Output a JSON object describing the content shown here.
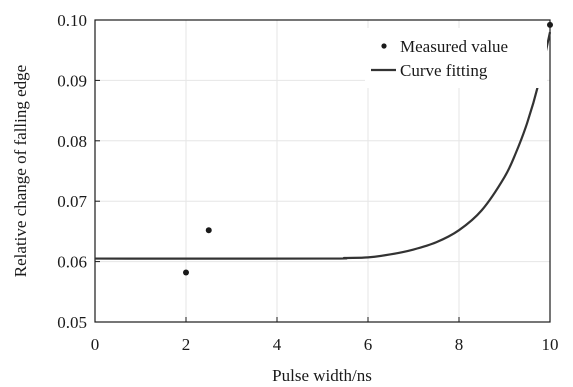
{
  "chart_data": {
    "type": "scatter",
    "xlabel": "Pulse width/ns",
    "ylabel": "Relative change of falling edge",
    "xlim": [
      0,
      10
    ],
    "ylim": [
      0.05,
      0.1
    ],
    "x_ticks": [
      "0",
      "2",
      "4",
      "6",
      "8",
      "10"
    ],
    "y_ticks": [
      "0.05",
      "0.06",
      "0.07",
      "0.08",
      "0.09",
      "0.10"
    ],
    "grid": true,
    "legend_position": "top-right",
    "series": [
      {
        "name": "Measured value",
        "kind": "scatter",
        "points": [
          {
            "x": 2.0,
            "y": 0.0582
          },
          {
            "x": 2.5,
            "y": 0.0652
          },
          {
            "x": 10.0,
            "y": 0.0992
          }
        ]
      },
      {
        "name": "Curve fitting",
        "kind": "line",
        "points": [
          {
            "x": 0,
            "y": 0.0605
          },
          {
            "x": 5.0,
            "y": 0.0605
          },
          {
            "x": 5.5,
            "y": 0.0606
          },
          {
            "x": 6.0,
            "y": 0.0607
          },
          {
            "x": 6.5,
            "y": 0.0612
          },
          {
            "x": 7.0,
            "y": 0.062
          },
          {
            "x": 7.5,
            "y": 0.0632
          },
          {
            "x": 8.0,
            "y": 0.0652
          },
          {
            "x": 8.5,
            "y": 0.0685
          },
          {
            "x": 9.0,
            "y": 0.074
          },
          {
            "x": 9.25,
            "y": 0.078
          },
          {
            "x": 9.5,
            "y": 0.083
          },
          {
            "x": 9.75,
            "y": 0.0895
          },
          {
            "x": 10.0,
            "y": 0.098
          }
        ]
      }
    ]
  }
}
